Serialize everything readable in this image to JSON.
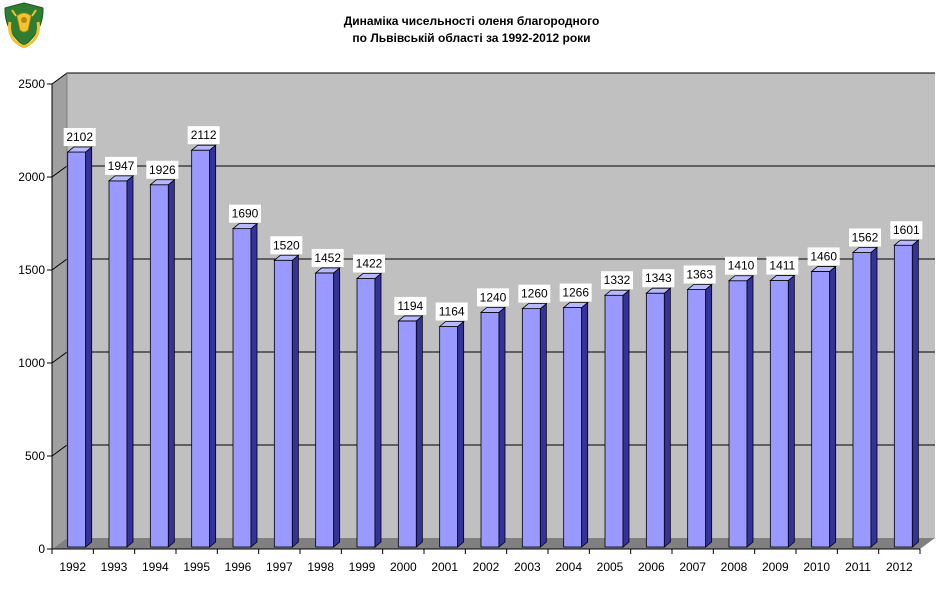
{
  "chart_data": {
    "type": "bar",
    "title": "Динаміка чисельності оленя благородного",
    "subtitle": "по Львівській області за 1992-2012 роки",
    "categories": [
      "1992",
      "1993",
      "1994",
      "1995",
      "1996",
      "1997",
      "1998",
      "1999",
      "2000",
      "2001",
      "2002",
      "2003",
      "2004",
      "2005",
      "2006",
      "2007",
      "2008",
      "2009",
      "2010",
      "2011",
      "2012"
    ],
    "series": [
      {
        "values": [
          2102,
          1947,
          1926,
          2112,
          1690,
          1520,
          1452,
          1422,
          1194,
          1164,
          1240,
          1260,
          1266,
          1332,
          1343,
          1363,
          1410,
          1411,
          1460,
          1562,
          1601
        ]
      }
    ],
    "ylim": [
      0,
      2500
    ],
    "yticks": [
      0,
      500,
      1000,
      1500,
      2000,
      2500
    ],
    "grid": true,
    "data_labels": true,
    "legend": "none",
    "style": "3d-column",
    "colors": {
      "bar_face": "#9999ff",
      "bar_side": "#333399",
      "wall": "#c0c0c0",
      "floor": "#808080",
      "label_bg": "#ffffff"
    }
  },
  "logo": {
    "icon": "coat-of-arms-icon"
  }
}
